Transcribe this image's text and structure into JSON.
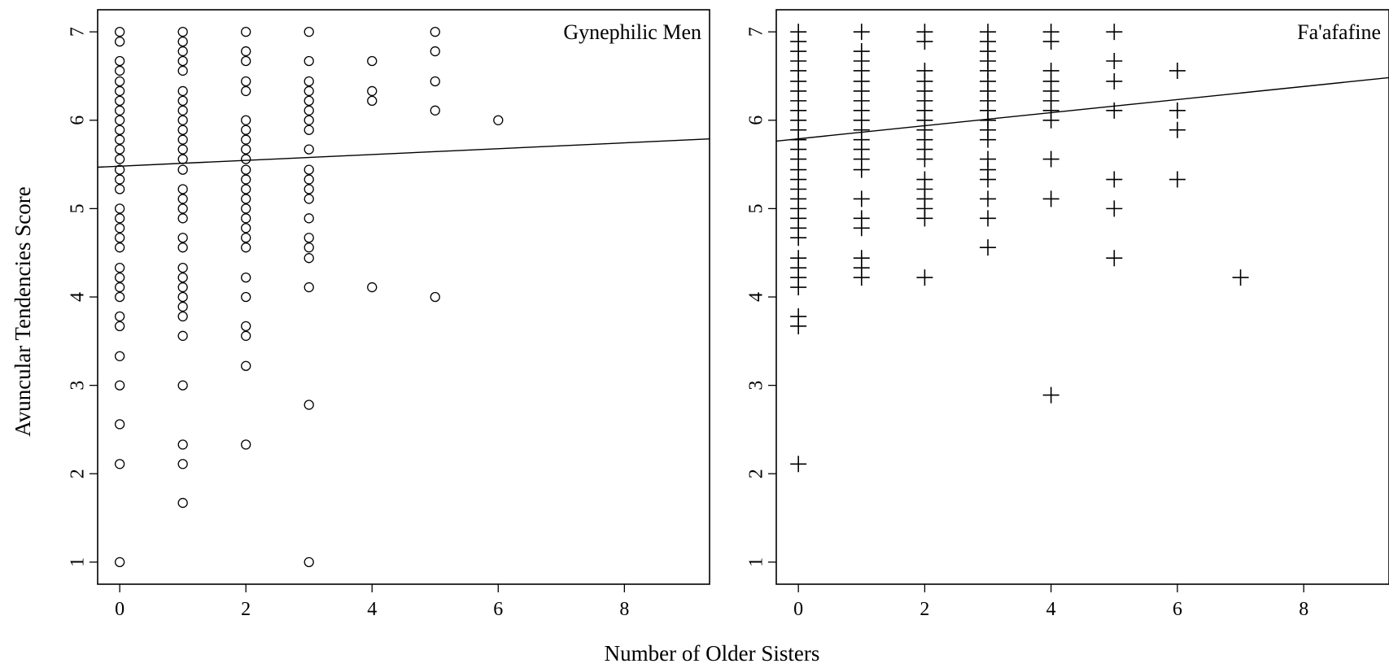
{
  "figure": {
    "shared_xlabel": "Number of Older Sisters",
    "shared_ylabel": "Avuncular Tendencies Score"
  },
  "chart_data": [
    {
      "type": "scatter",
      "title": "Gynephilic Men",
      "xlabel": "Number of Older Sisters",
      "ylabel": "Avuncular Tendencies Score",
      "xlim": [
        -0.35,
        9.35
      ],
      "ylim": [
        0.75,
        7.25
      ],
      "xticks": [
        0,
        2,
        4,
        6,
        8
      ],
      "yticks": [
        1,
        2,
        3,
        4,
        5,
        6,
        7
      ],
      "marker": "circle",
      "grid": false,
      "series": [
        {
          "points": [
            [
              0,
              7
            ],
            [
              0,
              6.89
            ],
            [
              0,
              6.67
            ],
            [
              0,
              6.56
            ],
            [
              0,
              6.44
            ],
            [
              0,
              6.33
            ],
            [
              0,
              6.22
            ],
            [
              0,
              6.11
            ],
            [
              0,
              6
            ],
            [
              0,
              5.89
            ],
            [
              0,
              5.78
            ],
            [
              0,
              5.67
            ],
            [
              0,
              5.56
            ],
            [
              0,
              5.44
            ],
            [
              0,
              5.33
            ],
            [
              0,
              5.22
            ],
            [
              0,
              5
            ],
            [
              0,
              4.89
            ],
            [
              0,
              4.78
            ],
            [
              0,
              4.67
            ],
            [
              0,
              4.56
            ],
            [
              0,
              4.33
            ],
            [
              0,
              4.22
            ],
            [
              0,
              4.11
            ],
            [
              0,
              4
            ],
            [
              0,
              3.78
            ],
            [
              0,
              3.67
            ],
            [
              0,
              3.33
            ],
            [
              0,
              3
            ],
            [
              0,
              2.56
            ],
            [
              0,
              2.11
            ],
            [
              0,
              1
            ],
            [
              1,
              7
            ],
            [
              1,
              6.89
            ],
            [
              1,
              6.78
            ],
            [
              1,
              6.67
            ],
            [
              1,
              6.56
            ],
            [
              1,
              6.33
            ],
            [
              1,
              6.22
            ],
            [
              1,
              6.11
            ],
            [
              1,
              6
            ],
            [
              1,
              5.89
            ],
            [
              1,
              5.78
            ],
            [
              1,
              5.67
            ],
            [
              1,
              5.56
            ],
            [
              1,
              5.44
            ],
            [
              1,
              5.22
            ],
            [
              1,
              5.11
            ],
            [
              1,
              5
            ],
            [
              1,
              4.89
            ],
            [
              1,
              4.67
            ],
            [
              1,
              4.56
            ],
            [
              1,
              4.33
            ],
            [
              1,
              4.22
            ],
            [
              1,
              4.11
            ],
            [
              1,
              4
            ],
            [
              1,
              3.89
            ],
            [
              1,
              3.78
            ],
            [
              1,
              3.56
            ],
            [
              1,
              3
            ],
            [
              1,
              2.33
            ],
            [
              1,
              2.11
            ],
            [
              1,
              1.67
            ],
            [
              2,
              7
            ],
            [
              2,
              6.78
            ],
            [
              2,
              6.67
            ],
            [
              2,
              6.44
            ],
            [
              2,
              6.33
            ],
            [
              2,
              6
            ],
            [
              2,
              5.89
            ],
            [
              2,
              5.78
            ],
            [
              2,
              5.67
            ],
            [
              2,
              5.56
            ],
            [
              2,
              5.44
            ],
            [
              2,
              5.33
            ],
            [
              2,
              5.22
            ],
            [
              2,
              5.11
            ],
            [
              2,
              5
            ],
            [
              2,
              4.89
            ],
            [
              2,
              4.78
            ],
            [
              2,
              4.67
            ],
            [
              2,
              4.56
            ],
            [
              2,
              4.22
            ],
            [
              2,
              4
            ],
            [
              2,
              3.67
            ],
            [
              2,
              3.56
            ],
            [
              2,
              3.22
            ],
            [
              2,
              2.33
            ],
            [
              3,
              7
            ],
            [
              3,
              6.67
            ],
            [
              3,
              6.44
            ],
            [
              3,
              6.33
            ],
            [
              3,
              6.22
            ],
            [
              3,
              6.11
            ],
            [
              3,
              6
            ],
            [
              3,
              5.89
            ],
            [
              3,
              5.67
            ],
            [
              3,
              5.44
            ],
            [
              3,
              5.33
            ],
            [
              3,
              5.22
            ],
            [
              3,
              5.11
            ],
            [
              3,
              4.89
            ],
            [
              3,
              4.67
            ],
            [
              3,
              4.56
            ],
            [
              3,
              4.44
            ],
            [
              3,
              4.11
            ],
            [
              3,
              2.78
            ],
            [
              3,
              1
            ],
            [
              4,
              6.67
            ],
            [
              4,
              6.33
            ],
            [
              4,
              6.22
            ],
            [
              4,
              4.11
            ],
            [
              5,
              7
            ],
            [
              5,
              6.78
            ],
            [
              5,
              6.44
            ],
            [
              5,
              6.11
            ],
            [
              5,
              4
            ],
            [
              6,
              6
            ]
          ]
        }
      ],
      "fit_line": {
        "intercept": 5.48,
        "slope": 0.033
      }
    },
    {
      "type": "scatter",
      "title": "Fa'afafine",
      "xlabel": "Number of Older Sisters",
      "ylabel": "Avuncular Tendencies Score",
      "xlim": [
        -0.35,
        9.35
      ],
      "ylim": [
        0.75,
        7.25
      ],
      "xticks": [
        0,
        2,
        4,
        6,
        8
      ],
      "yticks": [
        1,
        2,
        3,
        4,
        5,
        6,
        7
      ],
      "marker": "plus",
      "grid": false,
      "series": [
        {
          "points": [
            [
              0,
              7
            ],
            [
              0,
              6.89
            ],
            [
              0,
              6.78
            ],
            [
              0,
              6.67
            ],
            [
              0,
              6.56
            ],
            [
              0,
              6.44
            ],
            [
              0,
              6.33
            ],
            [
              0,
              6.22
            ],
            [
              0,
              6.11
            ],
            [
              0,
              6
            ],
            [
              0,
              5.89
            ],
            [
              0,
              5.78
            ],
            [
              0,
              5.67
            ],
            [
              0,
              5.56
            ],
            [
              0,
              5.44
            ],
            [
              0,
              5.33
            ],
            [
              0,
              5.22
            ],
            [
              0,
              5.11
            ],
            [
              0,
              5
            ],
            [
              0,
              4.89
            ],
            [
              0,
              4.78
            ],
            [
              0,
              4.67
            ],
            [
              0,
              4.44
            ],
            [
              0,
              4.33
            ],
            [
              0,
              4.22
            ],
            [
              0,
              4.11
            ],
            [
              0,
              3.78
            ],
            [
              0,
              3.67
            ],
            [
              0,
              2.11
            ],
            [
              1,
              7
            ],
            [
              1,
              6.78
            ],
            [
              1,
              6.67
            ],
            [
              1,
              6.56
            ],
            [
              1,
              6.44
            ],
            [
              1,
              6.33
            ],
            [
              1,
              6.22
            ],
            [
              1,
              6.11
            ],
            [
              1,
              6
            ],
            [
              1,
              5.89
            ],
            [
              1,
              5.78
            ],
            [
              1,
              5.67
            ],
            [
              1,
              5.56
            ],
            [
              1,
              5.44
            ],
            [
              1,
              5.11
            ],
            [
              1,
              4.89
            ],
            [
              1,
              4.78
            ],
            [
              1,
              4.44
            ],
            [
              1,
              4.33
            ],
            [
              1,
              4.22
            ],
            [
              2,
              7
            ],
            [
              2,
              6.89
            ],
            [
              2,
              6.56
            ],
            [
              2,
              6.44
            ],
            [
              2,
              6.33
            ],
            [
              2,
              6.22
            ],
            [
              2,
              6.11
            ],
            [
              2,
              6
            ],
            [
              2,
              5.89
            ],
            [
              2,
              5.78
            ],
            [
              2,
              5.67
            ],
            [
              2,
              5.56
            ],
            [
              2,
              5.33
            ],
            [
              2,
              5.22
            ],
            [
              2,
              5.11
            ],
            [
              2,
              5
            ],
            [
              2,
              4.89
            ],
            [
              2,
              4.22
            ],
            [
              3,
              7
            ],
            [
              3,
              6.89
            ],
            [
              3,
              6.78
            ],
            [
              3,
              6.67
            ],
            [
              3,
              6.56
            ],
            [
              3,
              6.44
            ],
            [
              3,
              6.33
            ],
            [
              3,
              6.22
            ],
            [
              3,
              6.11
            ],
            [
              3,
              6
            ],
            [
              3,
              5.89
            ],
            [
              3,
              5.78
            ],
            [
              3,
              5.56
            ],
            [
              3,
              5.44
            ],
            [
              3,
              5.33
            ],
            [
              3,
              5.11
            ],
            [
              3,
              4.89
            ],
            [
              3,
              4.56
            ],
            [
              4,
              7
            ],
            [
              4,
              6.89
            ],
            [
              4,
              6.56
            ],
            [
              4,
              6.44
            ],
            [
              4,
              6.33
            ],
            [
              4,
              6.22
            ],
            [
              4,
              6.11
            ],
            [
              4,
              6
            ],
            [
              4,
              5.56
            ],
            [
              4,
              5.11
            ],
            [
              4,
              2.89
            ],
            [
              5,
              7
            ],
            [
              5,
              6.67
            ],
            [
              5,
              6.44
            ],
            [
              5,
              6.11
            ],
            [
              5,
              5.33
            ],
            [
              5,
              5
            ],
            [
              5,
              4.44
            ],
            [
              6,
              6.56
            ],
            [
              6,
              6.11
            ],
            [
              6,
              5.89
            ],
            [
              6,
              5.33
            ],
            [
              7,
              4.22
            ]
          ]
        }
      ],
      "fit_line": {
        "intercept": 5.79,
        "slope": 0.074
      }
    }
  ]
}
